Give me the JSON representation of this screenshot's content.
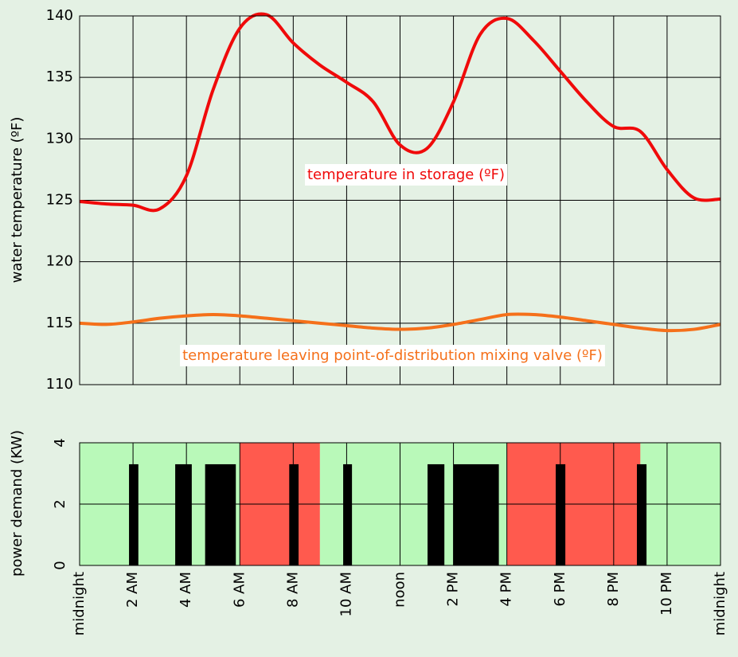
{
  "chart_data": [
    {
      "type": "line",
      "ylabel": "water temperature (ºF)",
      "x": [
        0,
        1,
        2,
        3,
        4,
        5,
        6,
        7,
        8,
        9,
        10,
        11,
        12,
        13,
        14,
        15,
        16,
        17,
        18,
        19,
        20,
        21,
        22,
        23,
        24
      ],
      "series": [
        {
          "name": "temperature in storage (ºF)",
          "color": "#f00a0a",
          "values": [
            124.9,
            124.7,
            124.6,
            124.3,
            127,
            134,
            139,
            140.1,
            137.8,
            136,
            134.6,
            133,
            129.5,
            129.2,
            133,
            138.5,
            139.8,
            138,
            135.5,
            133,
            131,
            130.6,
            127.5,
            125.2,
            125.1
          ]
        },
        {
          "name": "temperature leaving point-of-distribution mixing valve (ºF)",
          "color": "#f5701a",
          "values": [
            115,
            114.9,
            115.1,
            115.4,
            115.6,
            115.7,
            115.6,
            115.4,
            115.2,
            115,
            114.8,
            114.6,
            114.5,
            114.6,
            114.9,
            115.3,
            115.7,
            115.7,
            115.5,
            115.2,
            114.9,
            114.6,
            114.4,
            114.5,
            114.9
          ]
        }
      ],
      "xlim": [
        0,
        24
      ],
      "ylim": [
        110,
        140
      ],
      "yticks": [
        110,
        115,
        120,
        125,
        130,
        135,
        140
      ],
      "grid": true
    },
    {
      "type": "timeline",
      "ylabel": "power demand (KW)",
      "periods": [
        {
          "start": 0,
          "end": 6,
          "color": "#b9f9b9"
        },
        {
          "start": 6,
          "end": 9,
          "color": "#ff5a4e"
        },
        {
          "start": 9,
          "end": 16,
          "color": "#b9f9b9"
        },
        {
          "start": 16,
          "end": 21,
          "color": "#ff5a4e"
        },
        {
          "start": 21,
          "end": 24,
          "color": "#b9f9b9"
        }
      ],
      "bars": {
        "start": [
          1.85,
          3.58,
          4.7,
          7.85,
          9.87,
          13.03,
          14.0,
          17.83,
          20.87
        ],
        "end": [
          2.2,
          4.2,
          5.85,
          8.2,
          10.2,
          13.66,
          15.7,
          18.19,
          21.23
        ],
        "values": [
          3.3,
          3.3,
          3.3,
          3.3,
          3.3,
          3.3,
          3.3,
          3.3,
          3.3
        ]
      },
      "color": "#000000",
      "xlim": [
        0,
        24
      ],
      "xticks": [
        {
          "value": 0,
          "label": "midnight"
        },
        {
          "value": 2,
          "label": "2 AM"
        },
        {
          "value": 4,
          "label": "4 AM"
        },
        {
          "value": 6,
          "label": "6 AM"
        },
        {
          "value": 8,
          "label": "8 AM"
        },
        {
          "value": 10,
          "label": "10 AM"
        },
        {
          "value": 12,
          "label": "noon"
        },
        {
          "value": 14,
          "label": "2 PM"
        },
        {
          "value": 16,
          "label": "4 PM"
        },
        {
          "value": 18,
          "label": "6 PM"
        },
        {
          "value": 20,
          "label": "8 PM"
        },
        {
          "value": 22,
          "label": "10 PM"
        },
        {
          "value": 24,
          "label": "midnight"
        }
      ],
      "ylim": [
        0,
        4
      ],
      "yticks": [
        0,
        2,
        4
      ],
      "grid": true
    }
  ]
}
